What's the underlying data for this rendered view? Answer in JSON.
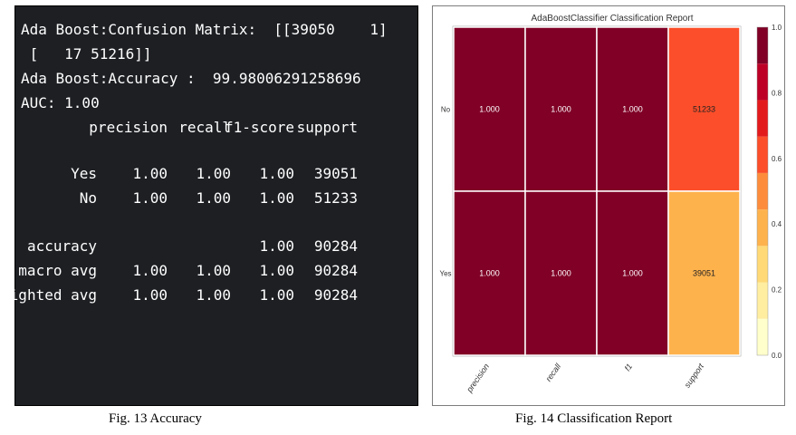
{
  "terminal": {
    "lines": [
      "Ada Boost:Confusion Matrix:  [[39050    1]",
      " [   17 51216]]",
      "Ada Boost:Accuracy :  99.98006291258696",
      "AUC: 1.00"
    ],
    "headers": [
      "precision",
      "recall",
      "f1-score",
      "support"
    ],
    "rows": [
      {
        "label": "Yes",
        "values": [
          "1.00",
          "1.00",
          "1.00",
          "39051"
        ]
      },
      {
        "label": "No",
        "values": [
          "1.00",
          "1.00",
          "1.00",
          "51233"
        ]
      },
      {
        "label": "accuracy",
        "values": [
          "",
          "",
          "1.00",
          "90284"
        ]
      },
      {
        "label": "macro avg",
        "values": [
          "1.00",
          "1.00",
          "1.00",
          "90284"
        ]
      },
      {
        "label": "weighted avg",
        "values": [
          "1.00",
          "1.00",
          "1.00",
          "90284"
        ]
      }
    ]
  },
  "captions": {
    "left": "Fig. 13 Accuracy",
    "right": "Fig. 14 Classification Report"
  },
  "chart_data": {
    "type": "heatmap",
    "title": "AdaBoostClassifier Classification Report",
    "columns": [
      "precision",
      "recall",
      "f1",
      "support"
    ],
    "rows": [
      "No",
      "Yes"
    ],
    "cell_labels": [
      [
        "1.000",
        "1.000",
        "1.000",
        "51233"
      ],
      [
        "1.000",
        "1.000",
        "1.000",
        "39051"
      ]
    ],
    "cell_values": [
      [
        1.0,
        1.0,
        1.0,
        0.567
      ],
      [
        1.0,
        1.0,
        1.0,
        0.433
      ]
    ],
    "colorbar": {
      "range": [
        0.0,
        1.0
      ],
      "ticks": [
        "0.0",
        "0.2",
        "0.4",
        "0.6",
        "0.8",
        "1.0"
      ],
      "colors": [
        "#ffffcc",
        "#ffeda0",
        "#fed976",
        "#feb24c",
        "#fd8d3c",
        "#fc4e2a",
        "#e31a1c",
        "#bd0026",
        "#800026"
      ]
    }
  }
}
